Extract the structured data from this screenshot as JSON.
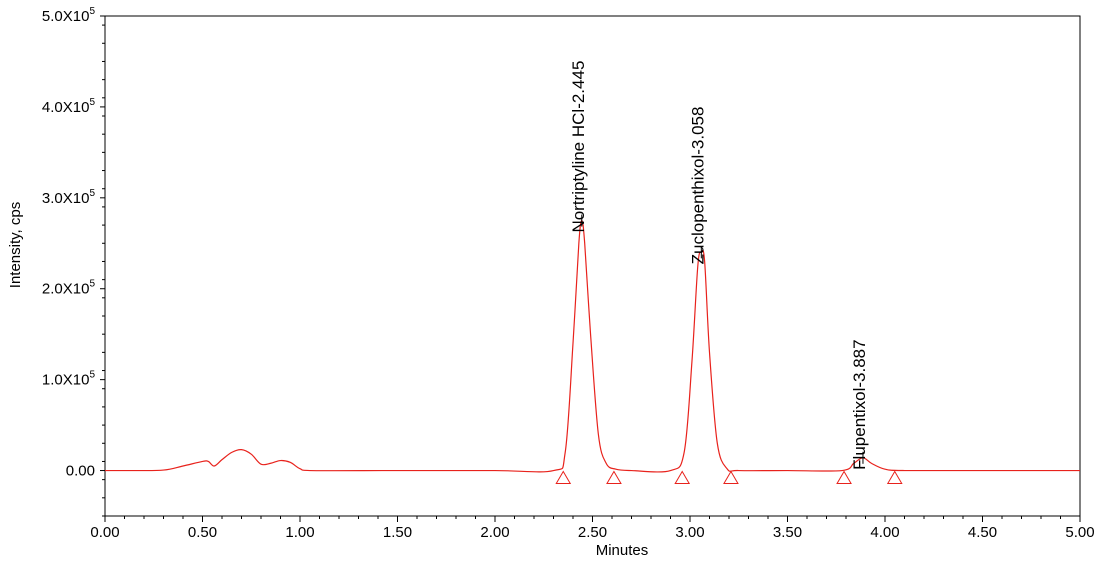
{
  "chart_data": {
    "type": "line",
    "xlabel": "Minutes",
    "ylabel": "Intensity, cps",
    "xlim": [
      0,
      5
    ],
    "ylim": [
      -50000,
      500000
    ],
    "grid": false,
    "x_ticks": [
      {
        "value": 0.0,
        "label": "0.00"
      },
      {
        "value": 0.5,
        "label": "0.50"
      },
      {
        "value": 1.0,
        "label": "1.00"
      },
      {
        "value": 1.5,
        "label": "1.50"
      },
      {
        "value": 2.0,
        "label": "2.00"
      },
      {
        "value": 2.5,
        "label": "2.50"
      },
      {
        "value": 3.0,
        "label": "3.00"
      },
      {
        "value": 3.5,
        "label": "3.50"
      },
      {
        "value": 4.0,
        "label": "4.00"
      },
      {
        "value": 4.5,
        "label": "4.50"
      },
      {
        "value": 5.0,
        "label": "5.00"
      }
    ],
    "y_ticks": [
      {
        "value": 0,
        "label": "0.00",
        "exp": ""
      },
      {
        "value": 100000,
        "label": "1.0X10",
        "exp": "5"
      },
      {
        "value": 200000,
        "label": "2.0X10",
        "exp": "5"
      },
      {
        "value": 300000,
        "label": "3.0X10",
        "exp": "5"
      },
      {
        "value": 400000,
        "label": "4.0X10",
        "exp": "5"
      },
      {
        "value": 500000,
        "label": "5.0X10",
        "exp": "5"
      }
    ],
    "series": [
      {
        "color": "#e8221c",
        "x": [
          0.0,
          0.15,
          0.3,
          0.4,
          0.5,
          0.53,
          0.56,
          0.6,
          0.65,
          0.7,
          0.75,
          0.8,
          0.85,
          0.9,
          0.95,
          1.0,
          1.05,
          1.5,
          2.0,
          2.3,
          2.36,
          2.4,
          2.43,
          2.445,
          2.46,
          2.49,
          2.53,
          2.57,
          2.62,
          2.7,
          2.9,
          2.97,
          3.01,
          3.04,
          3.058,
          3.075,
          3.1,
          3.14,
          3.19,
          3.25,
          3.5,
          3.78,
          3.84,
          3.887,
          3.93,
          4.0,
          4.1,
          4.5,
          5.0
        ],
        "y": [
          0,
          0,
          500,
          5000,
          10000,
          10000,
          5000,
          12000,
          20000,
          23000,
          18000,
          7000,
          8000,
          11000,
          9000,
          2000,
          0,
          0,
          0,
          0,
          20000,
          140000,
          250000,
          275000,
          250000,
          150000,
          40000,
          8000,
          1500,
          0,
          0,
          20000,
          120000,
          225000,
          240000,
          230000,
          130000,
          30000,
          2000,
          0,
          0,
          0,
          8000,
          14000,
          8000,
          1500,
          0,
          0,
          0
        ]
      }
    ],
    "peaks": [
      {
        "label": "Nortriptyline HCl-2.445",
        "rt": 2.445,
        "apex": 275000,
        "start": 2.35,
        "end": 2.61
      },
      {
        "label": "Zuclopenthixol-3.058",
        "rt": 3.058,
        "apex": 240000,
        "start": 2.96,
        "end": 3.21
      },
      {
        "label": "Flupentixol-3.887",
        "rt": 3.887,
        "apex": 14000,
        "start": 3.79,
        "end": 4.05
      }
    ]
  }
}
